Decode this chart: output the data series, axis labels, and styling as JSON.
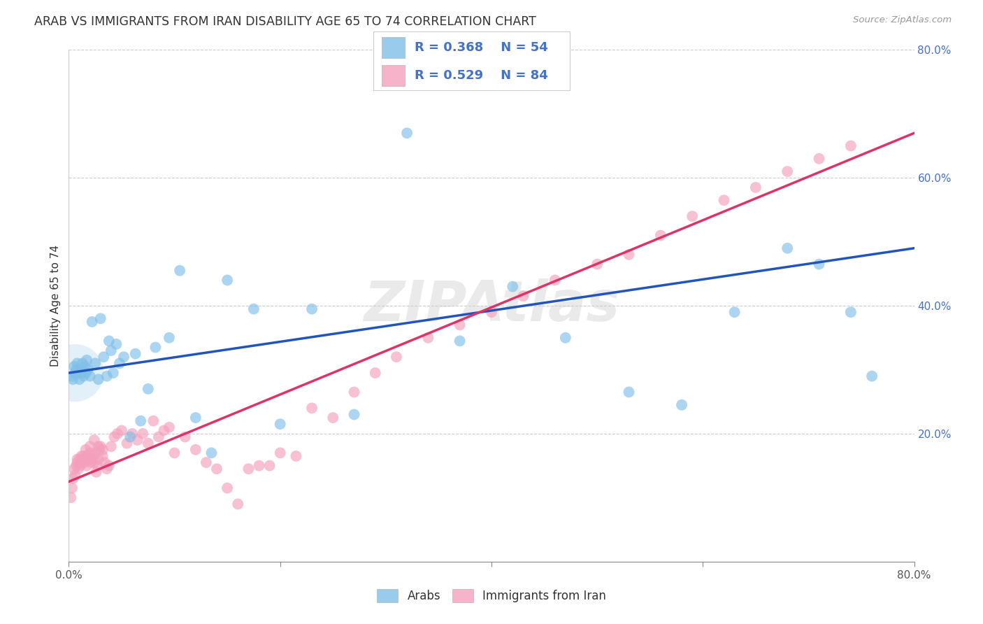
{
  "title": "ARAB VS IMMIGRANTS FROM IRAN DISABILITY AGE 65 TO 74 CORRELATION CHART",
  "source": "Source: ZipAtlas.com",
  "ylabel": "Disability Age 65 to 74",
  "xlim": [
    0.0,
    0.8
  ],
  "ylim": [
    0.0,
    0.8
  ],
  "xtick_labels": [
    "0.0%",
    "",
    "",
    "",
    "80.0%"
  ],
  "xtick_vals": [
    0.0,
    0.2,
    0.4,
    0.6,
    0.8
  ],
  "ytick_labels": [
    "20.0%",
    "40.0%",
    "60.0%",
    "80.0%"
  ],
  "ytick_vals": [
    0.2,
    0.4,
    0.6,
    0.8
  ],
  "arab_color": "#7fbfe8",
  "iran_color": "#f4a0bc",
  "arab_line_color": "#2255bb",
  "iran_line_color": "#dd3366",
  "text_color": "#4472c4",
  "watermark": "ZIPAtlas",
  "arab_x": [
    0.003,
    0.004,
    0.005,
    0.006,
    0.007,
    0.008,
    0.009,
    0.01,
    0.011,
    0.012,
    0.013,
    0.014,
    0.015,
    0.016,
    0.017,
    0.018,
    0.02,
    0.022,
    0.025,
    0.028,
    0.03,
    0.033,
    0.036,
    0.038,
    0.04,
    0.042,
    0.045,
    0.048,
    0.052,
    0.058,
    0.063,
    0.068,
    0.075,
    0.082,
    0.095,
    0.105,
    0.12,
    0.135,
    0.15,
    0.175,
    0.2,
    0.23,
    0.27,
    0.32,
    0.37,
    0.42,
    0.47,
    0.53,
    0.58,
    0.63,
    0.68,
    0.71,
    0.74,
    0.76
  ],
  "arab_y": [
    0.29,
    0.285,
    0.305,
    0.295,
    0.3,
    0.31,
    0.295,
    0.285,
    0.3,
    0.295,
    0.31,
    0.29,
    0.305,
    0.295,
    0.315,
    0.3,
    0.29,
    0.375,
    0.31,
    0.285,
    0.38,
    0.32,
    0.29,
    0.345,
    0.33,
    0.295,
    0.34,
    0.31,
    0.32,
    0.195,
    0.325,
    0.22,
    0.27,
    0.335,
    0.35,
    0.455,
    0.225,
    0.17,
    0.44,
    0.395,
    0.215,
    0.395,
    0.23,
    0.67,
    0.345,
    0.43,
    0.35,
    0.265,
    0.245,
    0.39,
    0.49,
    0.465,
    0.39,
    0.29
  ],
  "iran_x": [
    0.002,
    0.003,
    0.004,
    0.005,
    0.006,
    0.007,
    0.008,
    0.009,
    0.01,
    0.011,
    0.012,
    0.013,
    0.014,
    0.015,
    0.016,
    0.017,
    0.018,
    0.019,
    0.02,
    0.021,
    0.022,
    0.023,
    0.024,
    0.025,
    0.026,
    0.027,
    0.028,
    0.029,
    0.03,
    0.032,
    0.034,
    0.036,
    0.038,
    0.04,
    0.043,
    0.046,
    0.05,
    0.055,
    0.06,
    0.065,
    0.07,
    0.075,
    0.08,
    0.085,
    0.09,
    0.095,
    0.1,
    0.11,
    0.12,
    0.13,
    0.14,
    0.15,
    0.16,
    0.17,
    0.18,
    0.19,
    0.2,
    0.215,
    0.23,
    0.25,
    0.27,
    0.29,
    0.31,
    0.34,
    0.37,
    0.4,
    0.43,
    0.46,
    0.5,
    0.53,
    0.56,
    0.59,
    0.62,
    0.65,
    0.68,
    0.71,
    0.74,
    0.008,
    0.012,
    0.016,
    0.02,
    0.024,
    0.028,
    0.032
  ],
  "iran_y": [
    0.1,
    0.115,
    0.13,
    0.145,
    0.135,
    0.15,
    0.155,
    0.145,
    0.16,
    0.15,
    0.155,
    0.16,
    0.165,
    0.155,
    0.165,
    0.15,
    0.16,
    0.165,
    0.17,
    0.155,
    0.16,
    0.165,
    0.155,
    0.17,
    0.14,
    0.15,
    0.16,
    0.175,
    0.18,
    0.165,
    0.155,
    0.145,
    0.15,
    0.18,
    0.195,
    0.2,
    0.205,
    0.185,
    0.2,
    0.19,
    0.2,
    0.185,
    0.22,
    0.195,
    0.205,
    0.21,
    0.17,
    0.195,
    0.175,
    0.155,
    0.145,
    0.115,
    0.09,
    0.145,
    0.15,
    0.15,
    0.17,
    0.165,
    0.24,
    0.225,
    0.265,
    0.295,
    0.32,
    0.35,
    0.37,
    0.39,
    0.415,
    0.44,
    0.465,
    0.48,
    0.51,
    0.54,
    0.565,
    0.585,
    0.61,
    0.63,
    0.65,
    0.16,
    0.165,
    0.175,
    0.18,
    0.19,
    0.18,
    0.175
  ]
}
